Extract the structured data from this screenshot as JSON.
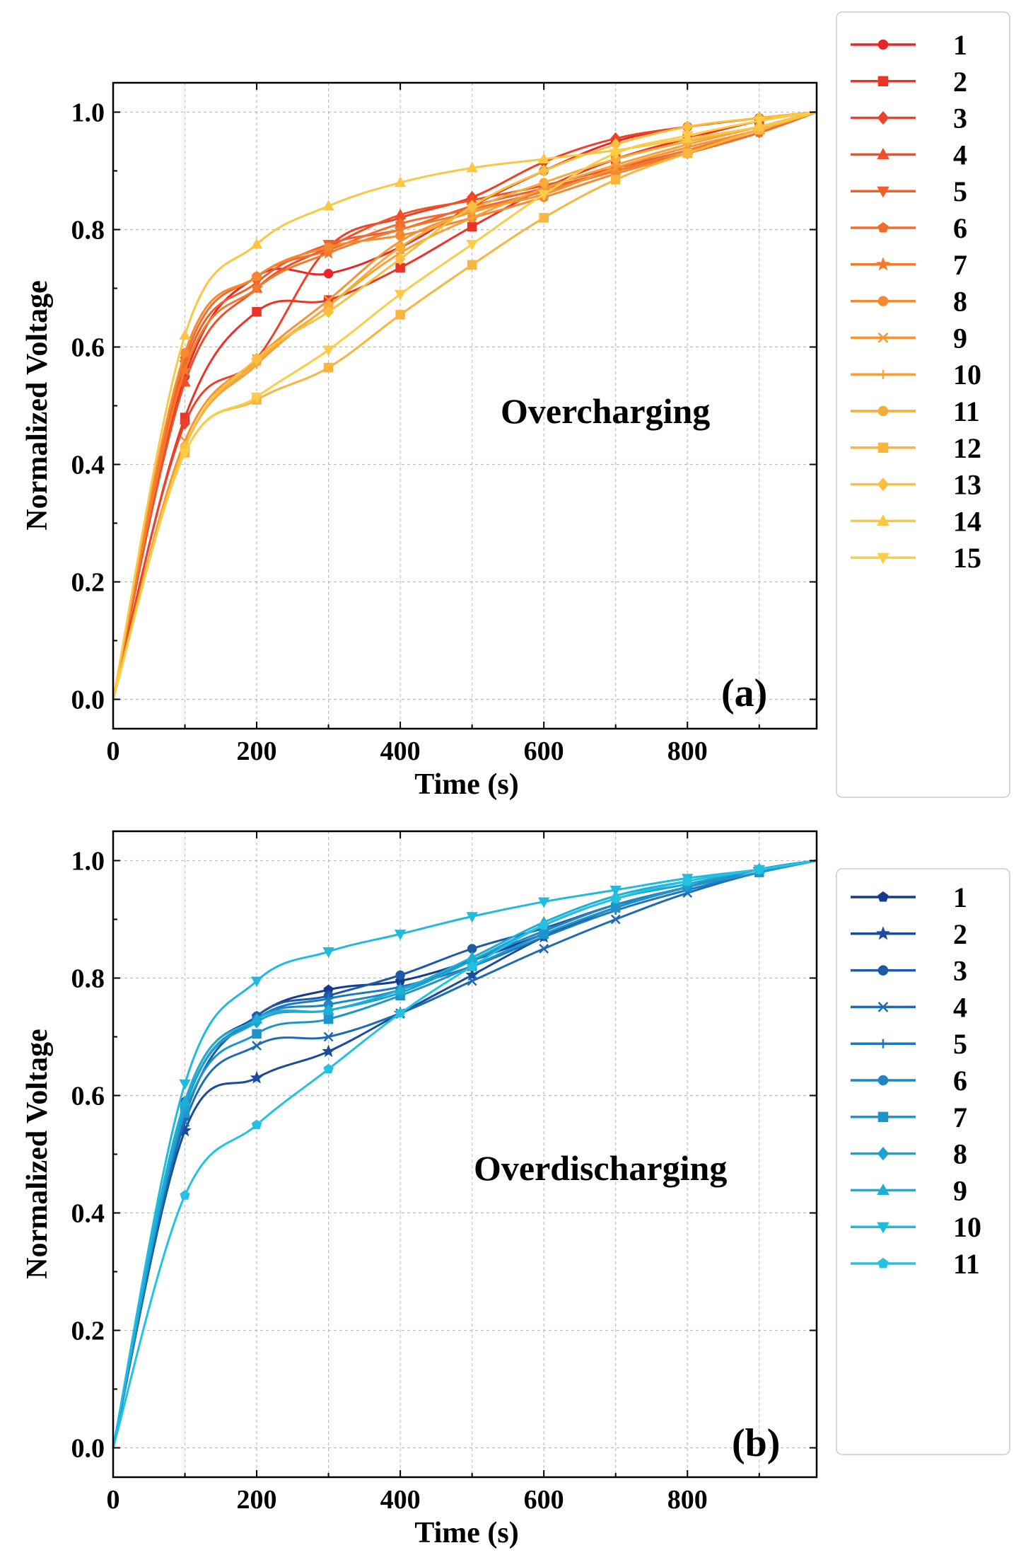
{
  "chart_data": [
    {
      "type": "line",
      "panel_label": "(a)",
      "annotation": "Overcharging",
      "xlabel": "Time (s)",
      "ylabel": "Normalized Voltage",
      "xlim": [
        0,
        980
      ],
      "ylim": [
        -0.05,
        1.05
      ],
      "xticks": [
        0,
        200,
        400,
        600,
        800
      ],
      "xtick_labels": [
        "0",
        "200",
        "400",
        "600",
        "800"
      ],
      "yticks": [
        0.0,
        0.2,
        0.4,
        0.6,
        0.8,
        1.0
      ],
      "ytick_labels": [
        "0.0",
        "0.2",
        "0.4",
        "0.6",
        "0.8",
        "1.0"
      ],
      "grid": true,
      "legend_position": "outside-right",
      "x": [
        0,
        100,
        200,
        300,
        400,
        500,
        600,
        700,
        800,
        900,
        980
      ],
      "series": [
        {
          "name": "1",
          "color": "#e8262a",
          "marker": "circle",
          "values": [
            0.0,
            0.55,
            0.72,
            0.725,
            0.77,
            0.84,
            0.9,
            0.95,
            0.975,
            0.99,
            1.0
          ]
        },
        {
          "name": "2",
          "color": "#ea3428",
          "marker": "square",
          "values": [
            0.0,
            0.48,
            0.66,
            0.68,
            0.735,
            0.805,
            0.87,
            0.92,
            0.955,
            0.985,
            1.0
          ]
        },
        {
          "name": "3",
          "color": "#ed4227",
          "marker": "diamond",
          "values": [
            0.0,
            0.47,
            0.58,
            0.77,
            0.82,
            0.855,
            0.915,
            0.955,
            0.975,
            0.99,
            1.0
          ]
        },
        {
          "name": "4",
          "color": "#ef5027",
          "marker": "triangle-up",
          "values": [
            0.0,
            0.54,
            0.7,
            0.77,
            0.825,
            0.85,
            0.875,
            0.905,
            0.935,
            0.97,
            1.0
          ]
        },
        {
          "name": "5",
          "color": "#f15e28",
          "marker": "triangle-down",
          "values": [
            0.0,
            0.57,
            0.71,
            0.775,
            0.8,
            0.84,
            0.87,
            0.9,
            0.93,
            0.965,
            1.0
          ]
        },
        {
          "name": "6",
          "color": "#f26c2a",
          "marker": "pentagon",
          "values": [
            0.0,
            0.58,
            0.72,
            0.765,
            0.81,
            0.835,
            0.865,
            0.9,
            0.93,
            0.965,
            1.0
          ]
        },
        {
          "name": "7",
          "color": "#f37a2d",
          "marker": "star",
          "values": [
            0.0,
            0.56,
            0.7,
            0.76,
            0.8,
            0.83,
            0.865,
            0.9,
            0.935,
            0.97,
            1.0
          ]
        },
        {
          "name": "8",
          "color": "#f58830",
          "marker": "circle",
          "values": [
            0.0,
            0.59,
            0.72,
            0.77,
            0.79,
            0.82,
            0.855,
            0.895,
            0.93,
            0.97,
            1.0
          ]
        },
        {
          "name": "9",
          "color": "#f69433",
          "marker": "x",
          "values": [
            0.0,
            0.44,
            0.58,
            0.68,
            0.78,
            0.83,
            0.86,
            0.905,
            0.94,
            0.97,
            1.0
          ]
        },
        {
          "name": "10",
          "color": "#f7a037",
          "marker": "plus",
          "values": [
            0.0,
            0.43,
            0.57,
            0.67,
            0.76,
            0.82,
            0.87,
            0.91,
            0.945,
            0.975,
            1.0
          ]
        },
        {
          "name": "11",
          "color": "#f8ab3a",
          "marker": "circle",
          "values": [
            0.0,
            0.43,
            0.575,
            0.67,
            0.77,
            0.835,
            0.88,
            0.92,
            0.95,
            0.975,
            1.0
          ]
        },
        {
          "name": "12",
          "color": "#f9b53d",
          "marker": "square",
          "values": [
            0.0,
            0.42,
            0.51,
            0.565,
            0.655,
            0.74,
            0.82,
            0.885,
            0.93,
            0.97,
            1.0
          ]
        },
        {
          "name": "13",
          "color": "#fabf40",
          "marker": "diamond",
          "values": [
            0.0,
            0.43,
            0.58,
            0.66,
            0.75,
            0.84,
            0.9,
            0.945,
            0.975,
            0.99,
            1.0
          ]
        },
        {
          "name": "14",
          "color": "#fbc643",
          "marker": "triangle-up",
          "values": [
            0.0,
            0.62,
            0.775,
            0.84,
            0.88,
            0.905,
            0.92,
            0.935,
            0.955,
            0.975,
            1.0
          ]
        },
        {
          "name": "15",
          "color": "#fccc46",
          "marker": "triangle-down",
          "values": [
            0.0,
            0.42,
            0.515,
            0.595,
            0.69,
            0.775,
            0.86,
            0.93,
            0.96,
            0.985,
            1.0
          ]
        }
      ]
    },
    {
      "type": "line",
      "panel_label": "(b)",
      "annotation": "Overdischarging",
      "xlabel": "Time (s)",
      "ylabel": "Normalized Voltage",
      "xlim": [
        0,
        980
      ],
      "ylim": [
        -0.05,
        1.05
      ],
      "xticks": [
        0,
        200,
        400,
        600,
        800
      ],
      "xtick_labels": [
        "0",
        "200",
        "400",
        "600",
        "800"
      ],
      "yticks": [
        0.0,
        0.2,
        0.4,
        0.6,
        0.8,
        1.0
      ],
      "ytick_labels": [
        "0.0",
        "0.2",
        "0.4",
        "0.6",
        "0.8",
        "1.0"
      ],
      "grid": true,
      "legend_position": "outside-right",
      "x": [
        0,
        100,
        200,
        300,
        400,
        500,
        600,
        700,
        800,
        900,
        980
      ],
      "series": [
        {
          "name": "1",
          "color": "#143b8c",
          "marker": "pentagon",
          "values": [
            0.0,
            0.59,
            0.735,
            0.78,
            0.795,
            0.83,
            0.875,
            0.92,
            0.955,
            0.985,
            1.0
          ]
        },
        {
          "name": "2",
          "color": "#1a4c9c",
          "marker": "star",
          "values": [
            0.0,
            0.54,
            0.63,
            0.675,
            0.74,
            0.805,
            0.87,
            0.92,
            0.955,
            0.985,
            1.0
          ]
        },
        {
          "name": "3",
          "color": "#1c5aa8",
          "marker": "circle",
          "values": [
            0.0,
            0.565,
            0.735,
            0.77,
            0.805,
            0.85,
            0.885,
            0.925,
            0.955,
            0.985,
            1.0
          ]
        },
        {
          "name": "4",
          "color": "#1e6bb4",
          "marker": "x",
          "values": [
            0.0,
            0.555,
            0.685,
            0.7,
            0.74,
            0.795,
            0.85,
            0.9,
            0.945,
            0.98,
            1.0
          ]
        },
        {
          "name": "5",
          "color": "#1f78be",
          "marker": "plus",
          "values": [
            0.0,
            0.58,
            0.73,
            0.765,
            0.785,
            0.82,
            0.87,
            0.915,
            0.95,
            0.98,
            1.0
          ]
        },
        {
          "name": "6",
          "color": "#1e86c4",
          "marker": "circle",
          "values": [
            0.0,
            0.58,
            0.73,
            0.755,
            0.78,
            0.83,
            0.88,
            0.925,
            0.955,
            0.985,
            1.0
          ]
        },
        {
          "name": "7",
          "color": "#1d94cb",
          "marker": "square",
          "values": [
            0.0,
            0.57,
            0.705,
            0.73,
            0.77,
            0.82,
            0.875,
            0.92,
            0.955,
            0.98,
            1.0
          ]
        },
        {
          "name": "8",
          "color": "#1ca2d0",
          "marker": "diamond",
          "values": [
            0.0,
            0.58,
            0.725,
            0.745,
            0.775,
            0.83,
            0.89,
            0.935,
            0.96,
            0.985,
            1.0
          ]
        },
        {
          "name": "9",
          "color": "#1daed5",
          "marker": "triangle-up",
          "values": [
            0.0,
            0.59,
            0.73,
            0.745,
            0.78,
            0.835,
            0.895,
            0.94,
            0.965,
            0.985,
            1.0
          ]
        },
        {
          "name": "10",
          "color": "#20bade",
          "marker": "triangle-down",
          "values": [
            0.0,
            0.62,
            0.795,
            0.845,
            0.875,
            0.905,
            0.93,
            0.95,
            0.97,
            0.985,
            1.0
          ]
        },
        {
          "name": "11",
          "color": "#22c2e2",
          "marker": "pentagon",
          "values": [
            0.0,
            0.43,
            0.55,
            0.645,
            0.74,
            0.82,
            0.89,
            0.935,
            0.965,
            0.985,
            1.0
          ]
        }
      ]
    }
  ]
}
